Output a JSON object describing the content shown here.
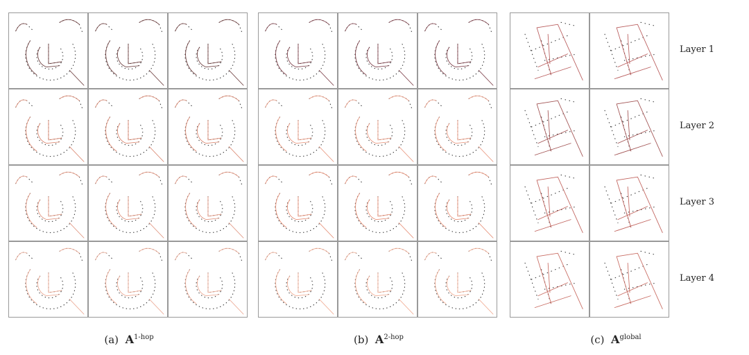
{
  "panels": [
    {
      "label": "(a)",
      "symbol": "A",
      "superscript": "1-hop"
    },
    {
      "label": "(b)",
      "symbol": "A",
      "superscript": "2-hop"
    },
    {
      "label": "(c)",
      "symbol": "A",
      "superscript": "global"
    }
  ],
  "layers": [
    "Layer 1",
    "Layer 2",
    "Layer 3",
    "Layer 4"
  ]
}
